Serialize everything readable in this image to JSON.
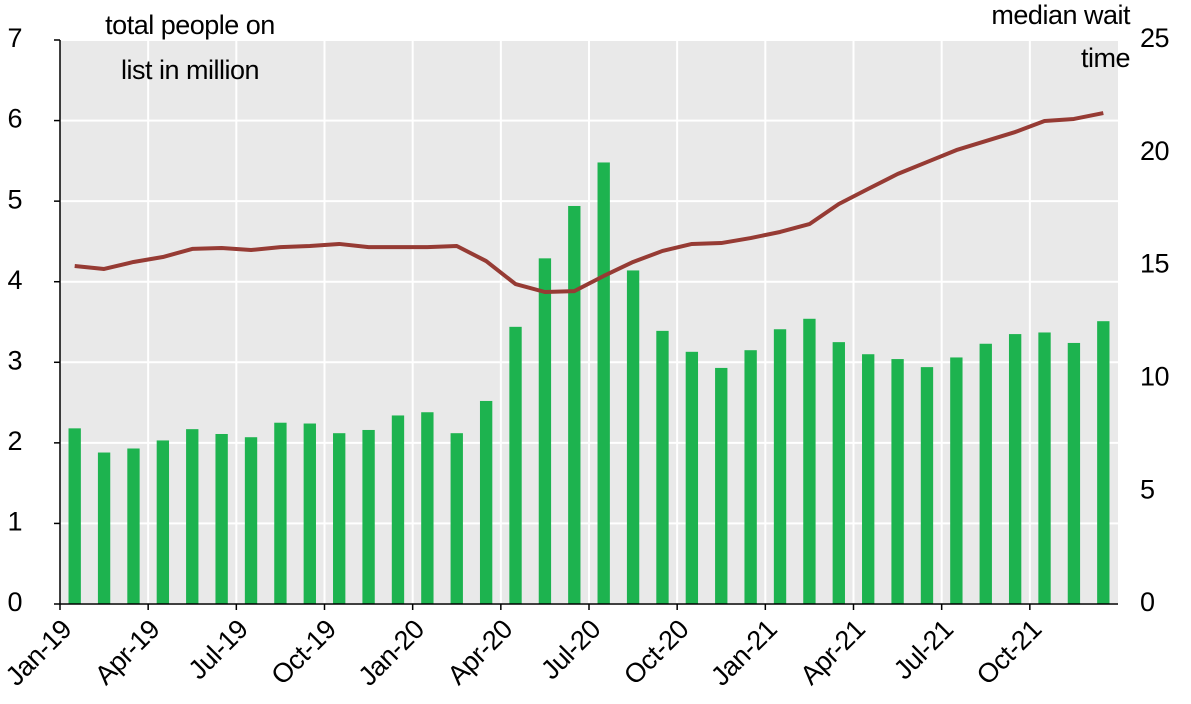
{
  "chart_data": {
    "type": "bar_line",
    "y_label": [
      "total people on",
      "list in million"
    ],
    "y2_label": [
      "median wait",
      "time"
    ],
    "categories": [
      "Jan-19",
      null,
      null,
      "Apr-19",
      null,
      null,
      "Jul-19",
      null,
      null,
      "Oct-19",
      null,
      null,
      "Jan-20",
      null,
      null,
      "Apr-20",
      null,
      null,
      "Jul-20",
      null,
      null,
      "Oct-20",
      null,
      null,
      "Jan-21",
      null,
      null,
      "Apr-21",
      null,
      null,
      "Jul-21",
      null,
      null,
      "Oct-21",
      null,
      null
    ],
    "series": [
      {
        "type": "bar",
        "color": "#1db34f",
        "axis": "y",
        "values": [
          2.18,
          1.88,
          1.93,
          2.03,
          2.17,
          2.11,
          2.07,
          2.25,
          2.24,
          2.12,
          2.16,
          2.34,
          2.38,
          2.12,
          2.52,
          3.44,
          4.29,
          4.94,
          5.48,
          4.14,
          3.39,
          3.13,
          2.93,
          3.15,
          3.41,
          3.54,
          3.25,
          3.1,
          3.04,
          2.94,
          3.06,
          3.23,
          3.35,
          3.37,
          3.24,
          3.51
        ]
      },
      {
        "type": "line",
        "color": "#963b34",
        "axis": "y2",
        "values": [
          14.98,
          14.85,
          15.16,
          15.38,
          15.74,
          15.78,
          15.69,
          15.82,
          15.87,
          15.96,
          15.82,
          15.82,
          15.82,
          15.87,
          15.2,
          14.18,
          13.83,
          13.87,
          14.54,
          15.16,
          15.65,
          15.96,
          16.0,
          16.22,
          16.49,
          16.84,
          17.73,
          18.4,
          19.06,
          19.59,
          20.12,
          20.52,
          20.92,
          21.41,
          21.5,
          21.76
        ]
      }
    ],
    "ylim": [
      0,
      7
    ],
    "yticks": [
      0,
      1,
      2,
      3,
      4,
      5,
      6,
      7
    ],
    "y2lim": [
      0,
      25
    ],
    "y2ticks": [
      0,
      5,
      10,
      15,
      20,
      25
    ],
    "grid": true
  }
}
